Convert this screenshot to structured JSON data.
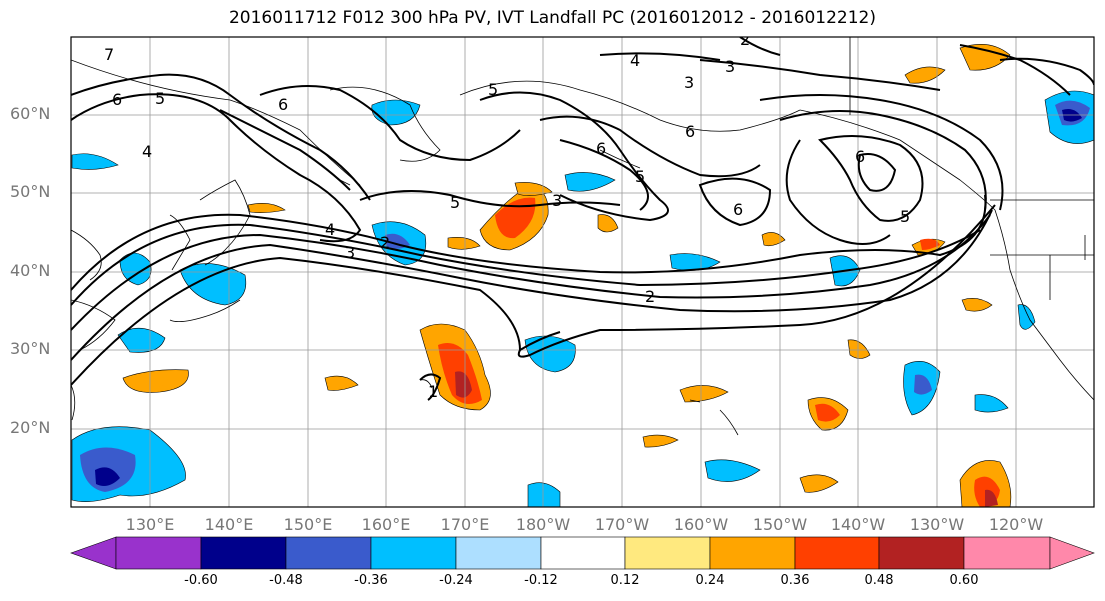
{
  "title": "2016011712 F012 300 hPa PV, IVT Landfall PC (2016012012 - 2016012212)",
  "axes": {
    "lat_labels": [
      "60°N",
      "50°N",
      "40°N",
      "30°N",
      "20°N"
    ],
    "lon_labels": [
      "130°E",
      "140°E",
      "150°E",
      "160°E",
      "170°E",
      "180°W",
      "170°W",
      "160°W",
      "150°W",
      "140°W",
      "130°W",
      "120°W"
    ]
  },
  "contour_labels": [
    "7",
    "6",
    "5",
    "4",
    "6",
    "5",
    "4",
    "3",
    "2",
    "3",
    "6",
    "5",
    "3",
    "6",
    "5",
    "4",
    "3",
    "2",
    "6",
    "5",
    "6",
    "2",
    "1"
  ],
  "colorbar": {
    "colors": [
      "#9932CC",
      "#00008B",
      "#3A5BCC",
      "#00BFFF",
      "#ADDFFF",
      "#FFFFFF",
      "#FFE97F",
      "#FFA500",
      "#FF4000",
      "#B22222",
      "#FF88AA"
    ],
    "tick_labels": [
      "-0.60",
      "-0.48",
      "-0.36",
      "-0.24",
      "-0.12",
      "0.12",
      "0.24",
      "0.36",
      "0.48",
      "0.60"
    ]
  }
}
